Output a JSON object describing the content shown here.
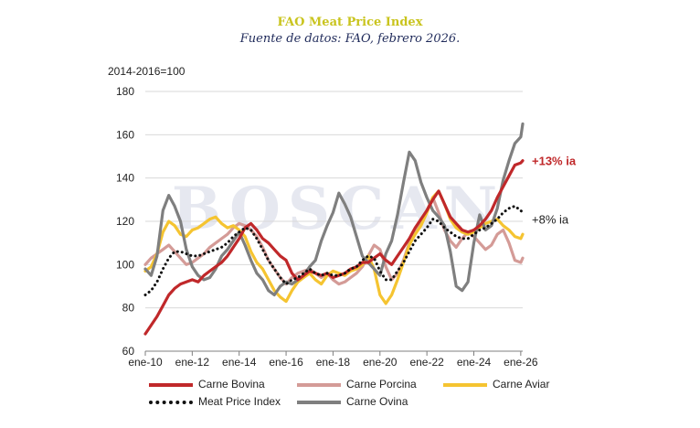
{
  "chart_data": {
    "type": "line",
    "title": "FAO Meat Price Index",
    "subtitle": "Fuente de datos: FAO, febrero 2026.",
    "ylabel": "2014-2016=100",
    "ylim": [
      60,
      180
    ],
    "yticks": [
      60,
      80,
      100,
      120,
      140,
      160,
      180
    ],
    "xlim": [
      0,
      193
    ],
    "x_tick_labels": [
      "ene-10",
      "ene-12",
      "ene-14",
      "ene-16",
      "ene-18",
      "ene-20",
      "ene-22",
      "ene-24",
      "ene-26"
    ],
    "x_tick_index": [
      0,
      24,
      48,
      72,
      96,
      120,
      144,
      168,
      192
    ],
    "annotations": [
      {
        "text": "+13% ia",
        "color": "#c0282a",
        "series": "Carne Bovina"
      },
      {
        "text": "+8% ia",
        "color": "#222222",
        "series": "Meat Price Index"
      }
    ],
    "watermark": "BOSCAN",
    "series": [
      {
        "name": "Carne Bovina",
        "color": "#c0282a",
        "style": "solid",
        "x": [
          0,
          3,
          6,
          9,
          12,
          15,
          18,
          21,
          24,
          27,
          30,
          33,
          36,
          39,
          42,
          45,
          48,
          51,
          54,
          57,
          60,
          63,
          66,
          69,
          72,
          75,
          78,
          81,
          84,
          87,
          90,
          93,
          96,
          99,
          102,
          105,
          108,
          111,
          114,
          117,
          120,
          123,
          126,
          129,
          132,
          135,
          138,
          141,
          144,
          147,
          150,
          153,
          156,
          159,
          162,
          165,
          168,
          171,
          174,
          177,
          180,
          183,
          186,
          189,
          192,
          193
        ],
        "values": [
          68,
          72,
          76,
          81,
          86,
          89,
          91,
          92,
          93,
          92,
          95,
          97,
          99,
          101,
          104,
          108,
          112,
          117,
          119,
          116,
          112,
          110,
          107,
          104,
          102,
          96,
          93,
          95,
          97,
          96,
          95,
          96,
          94,
          95,
          96,
          98,
          99,
          101,
          101,
          103,
          105,
          102,
          100,
          104,
          108,
          112,
          117,
          121,
          125,
          130,
          134,
          128,
          122,
          119,
          116,
          115,
          116,
          118,
          121,
          125,
          131,
          136,
          141,
          146,
          147,
          148
        ]
      },
      {
        "name": "Carne Porcina",
        "color": "#d49b97",
        "style": "solid",
        "x": [
          0,
          3,
          6,
          9,
          12,
          15,
          18,
          21,
          24,
          27,
          30,
          33,
          36,
          39,
          42,
          45,
          48,
          51,
          54,
          57,
          60,
          63,
          66,
          69,
          72,
          75,
          78,
          81,
          84,
          87,
          90,
          93,
          96,
          99,
          102,
          105,
          108,
          111,
          114,
          117,
          120,
          123,
          126,
          129,
          132,
          135,
          138,
          141,
          144,
          147,
          150,
          153,
          156,
          159,
          162,
          165,
          168,
          171,
          174,
          177,
          180,
          183,
          186,
          189,
          192,
          193
        ],
        "values": [
          100,
          103,
          105,
          107,
          109,
          106,
          103,
          100,
          101,
          103,
          105,
          108,
          110,
          112,
          114,
          117,
          119,
          118,
          116,
          113,
          108,
          102,
          98,
          94,
          91,
          94,
          96,
          97,
          98,
          96,
          94,
          96,
          93,
          91,
          92,
          94,
          96,
          99,
          104,
          109,
          107,
          99,
          93,
          96,
          102,
          110,
          116,
          120,
          125,
          131,
          124,
          116,
          111,
          108,
          112,
          115,
          113,
          110,
          107,
          109,
          114,
          116,
          110,
          102,
          101,
          103
        ]
      },
      {
        "name": "Carne Aviar",
        "color": "#f5c431",
        "style": "solid",
        "x": [
          0,
          3,
          6,
          9,
          12,
          15,
          18,
          21,
          24,
          27,
          30,
          33,
          36,
          39,
          42,
          45,
          48,
          51,
          54,
          57,
          60,
          63,
          66,
          69,
          72,
          75,
          78,
          81,
          84,
          87,
          90,
          93,
          96,
          99,
          102,
          105,
          108,
          111,
          114,
          117,
          120,
          123,
          126,
          129,
          132,
          135,
          138,
          141,
          144,
          147,
          150,
          153,
          156,
          159,
          162,
          165,
          168,
          171,
          174,
          177,
          180,
          183,
          186,
          189,
          192,
          193
        ],
        "values": [
          97,
          99,
          105,
          115,
          120,
          118,
          114,
          113,
          116,
          117,
          119,
          121,
          122,
          119,
          117,
          118,
          116,
          113,
          106,
          101,
          98,
          93,
          88,
          85,
          83,
          88,
          92,
          94,
          96,
          93,
          91,
          95,
          97,
          96,
          95,
          97,
          98,
          100,
          104,
          98,
          86,
          82,
          86,
          93,
          101,
          109,
          114,
          118,
          124,
          131,
          134,
          128,
          121,
          117,
          115,
          114,
          115,
          117,
          119,
          120,
          121,
          118,
          116,
          113,
          112,
          114
        ]
      },
      {
        "name": "Meat Price Index",
        "color": "#111111",
        "style": "dotted",
        "x": [
          0,
          3,
          6,
          9,
          12,
          15,
          18,
          21,
          24,
          27,
          30,
          33,
          36,
          39,
          42,
          45,
          48,
          51,
          54,
          57,
          60,
          63,
          66,
          69,
          72,
          75,
          78,
          81,
          84,
          87,
          90,
          93,
          96,
          99,
          102,
          105,
          108,
          111,
          114,
          117,
          120,
          123,
          126,
          129,
          132,
          135,
          138,
          141,
          144,
          147,
          150,
          153,
          156,
          159,
          162,
          165,
          168,
          171,
          174,
          177,
          180,
          183,
          186,
          189,
          192,
          193
        ],
        "values": [
          86,
          88,
          92,
          98,
          103,
          106,
          106,
          105,
          104,
          104,
          105,
          106,
          107,
          108,
          110,
          113,
          115,
          117,
          116,
          112,
          107,
          102,
          98,
          94,
          91,
          93,
          94,
          96,
          98,
          96,
          95,
          96,
          95,
          95,
          96,
          98,
          99,
          102,
          104,
          103,
          97,
          93,
          93,
          97,
          101,
          106,
          111,
          114,
          117,
          121,
          120,
          117,
          115,
          113,
          112,
          112,
          114,
          116,
          117,
          119,
          121,
          124,
          126,
          127,
          125,
          124
        ]
      },
      {
        "name": "Carne Ovina",
        "color": "#7f7f7f",
        "style": "solid",
        "x": [
          0,
          3,
          6,
          9,
          12,
          15,
          18,
          21,
          24,
          27,
          30,
          33,
          36,
          39,
          42,
          45,
          48,
          51,
          54,
          57,
          60,
          63,
          66,
          69,
          72,
          75,
          78,
          81,
          84,
          87,
          90,
          93,
          96,
          99,
          102,
          105,
          108,
          111,
          114,
          117,
          120,
          123,
          126,
          129,
          132,
          135,
          138,
          141,
          144,
          147,
          150,
          153,
          156,
          159,
          162,
          165,
          168,
          171,
          174,
          177,
          180,
          183,
          186,
          189,
          192,
          193
        ],
        "values": [
          98,
          95,
          104,
          125,
          132,
          127,
          120,
          107,
          99,
          95,
          93,
          94,
          98,
          104,
          107,
          111,
          115,
          109,
          102,
          96,
          93,
          88,
          86,
          90,
          92,
          91,
          93,
          95,
          99,
          102,
          111,
          118,
          124,
          133,
          128,
          122,
          113,
          104,
          101,
          98,
          95,
          105,
          111,
          123,
          138,
          152,
          148,
          138,
          131,
          125,
          122,
          118,
          106,
          90,
          88,
          92,
          110,
          123,
          116,
          118,
          126,
          139,
          148,
          156,
          159,
          165
        ]
      }
    ]
  },
  "legend": {
    "items": [
      {
        "label": "Carne Bovina"
      },
      {
        "label": "Carne Porcina"
      },
      {
        "label": "Carne Aviar"
      },
      {
        "label": "Meat Price Index"
      },
      {
        "label": "Carne Ovina"
      }
    ]
  }
}
